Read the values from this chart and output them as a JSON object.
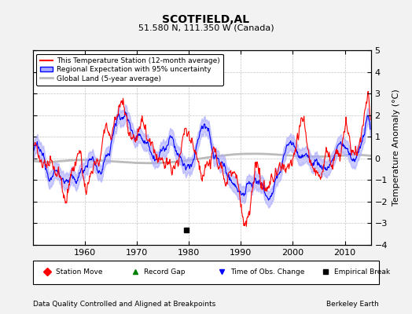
{
  "title": "SCOTFIELD,AL",
  "subtitle": "51.580 N, 111.350 W (Canada)",
  "ylabel": "Temperature Anomaly (°C)",
  "footer_left": "Data Quality Controlled and Aligned at Breakpoints",
  "footer_right": "Berkeley Earth",
  "ylim": [
    -4,
    5
  ],
  "xlim": [
    1950,
    2015
  ],
  "xticks": [
    1960,
    1970,
    1980,
    1990,
    2000,
    2010
  ],
  "yticks": [
    -4,
    -3,
    -2,
    -1,
    0,
    1,
    2,
    3,
    4,
    5
  ],
  "station_color": "#FF0000",
  "regional_color": "#0000FF",
  "regional_fill_color": "#AAAAFF",
  "global_color": "#BBBBBB",
  "empirical_break_year": 1979.5,
  "empirical_break_anomaly": -3.3,
  "title_fontsize": 10,
  "subtitle_fontsize": 8,
  "legend_fontsize": 7,
  "tick_fontsize": 8
}
